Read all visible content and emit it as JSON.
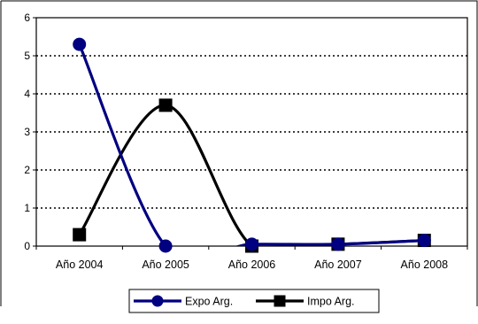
{
  "chart_data": {
    "type": "line",
    "title": "",
    "xlabel": "",
    "ylabel": "",
    "categories": [
      "Año 2004",
      "Año 2005",
      "Año 2006",
      "Año 2007",
      "Año 2008"
    ],
    "y_ticks": [
      "0",
      "1",
      "2",
      "3",
      "4",
      "5",
      "6"
    ],
    "ylim": [
      0,
      6
    ],
    "grid": "horizontal-dotted",
    "legend_position": "bottom",
    "smoothed": true,
    "series": [
      {
        "name": "Expo Arg.",
        "values": [
          5.3,
          0.0,
          0.05,
          0.05,
          0.15
        ],
        "color": "#000080",
        "marker": "circle"
      },
      {
        "name": "Impo Arg.",
        "values": [
          0.3,
          3.7,
          0.0,
          0.05,
          0.15
        ],
        "color": "#000000",
        "marker": "square"
      }
    ]
  }
}
